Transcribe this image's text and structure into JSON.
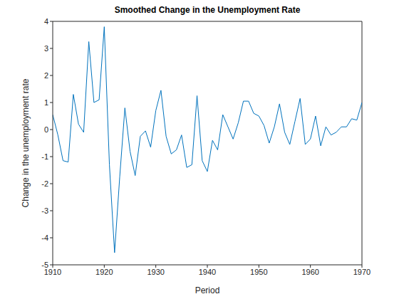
{
  "chart_data": {
    "type": "line",
    "title": "Smoothed Change in the Unemployment Rate",
    "x_label": "Period",
    "y_label": "Change in the unemployment rate",
    "x": [
      1910,
      1911,
      1912,
      1913,
      1914,
      1915,
      1916,
      1917,
      1918,
      1919,
      1920,
      1921,
      1922,
      1923,
      1924,
      1925,
      1926,
      1927,
      1928,
      1929,
      1930,
      1931,
      1932,
      1933,
      1934,
      1935,
      1936,
      1937,
      1938,
      1939,
      1940,
      1941,
      1942,
      1943,
      1944,
      1945,
      1946,
      1947,
      1948,
      1949,
      1950,
      1951,
      1952,
      1953,
      1954,
      1955,
      1956,
      1957,
      1958,
      1959,
      1960,
      1961,
      1962,
      1963,
      1964,
      1965,
      1966,
      1967,
      1968,
      1969,
      1970
    ],
    "values": [
      0.55,
      -0.2,
      -1.15,
      -1.2,
      1.3,
      0.2,
      -0.1,
      3.25,
      1.0,
      1.1,
      3.8,
      -1.3,
      -4.55,
      -1.75,
      0.8,
      -0.8,
      -1.7,
      -0.25,
      -0.05,
      -0.65,
      0.7,
      1.45,
      -0.25,
      -0.9,
      -0.75,
      -0.2,
      -1.4,
      -1.3,
      1.25,
      -1.15,
      -1.55,
      -0.4,
      -0.75,
      0.55,
      0.1,
      -0.35,
      0.25,
      1.05,
      1.05,
      0.6,
      0.5,
      0.15,
      -0.5,
      0.1,
      0.95,
      -0.1,
      -0.55,
      0.3,
      1.15,
      -0.55,
      -0.35,
      0.5,
      -0.6,
      0.1,
      -0.2,
      -0.1,
      0.1,
      0.1,
      0.4,
      0.35,
      1.0
    ],
    "color": "#0072bd",
    "xlim": [
      1910,
      1970
    ],
    "xticks": [
      1910,
      1920,
      1930,
      1940,
      1950,
      1960,
      1970
    ],
    "ylim": [
      -5,
      4
    ],
    "yticks": [
      -5,
      -4,
      -3,
      -2,
      -1,
      0,
      1,
      2,
      3,
      4
    ],
    "grid": false
  }
}
